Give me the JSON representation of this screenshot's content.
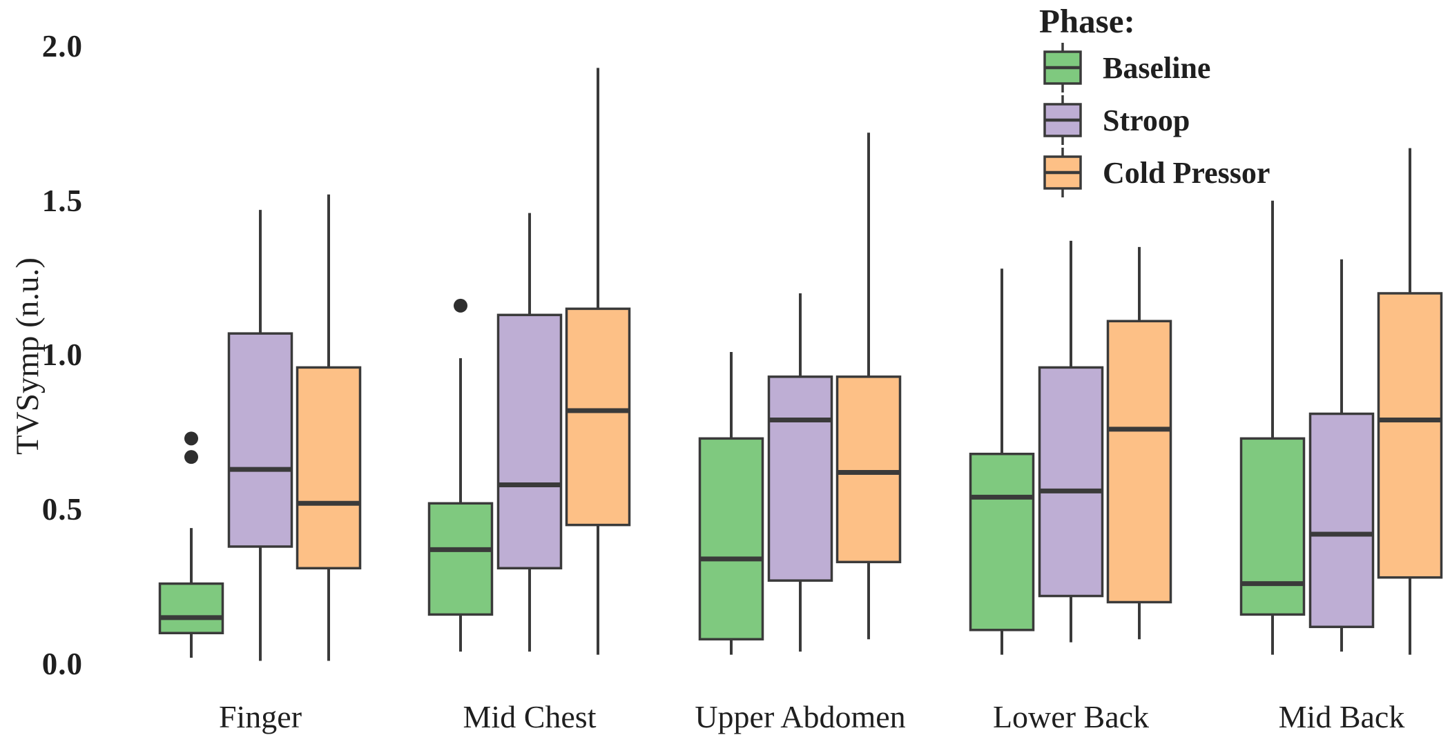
{
  "figure": {
    "background": "#ffffff"
  },
  "colors": {
    "baseline": "#7fc97f",
    "stroop": "#beaed4",
    "cold_pressor": "#fdc086",
    "box_stroke": "#3a3a3a",
    "outlier": "#2e2e2e",
    "text": "#1f1f1f"
  },
  "y_axis": {
    "tick_labels": [
      "2.0",
      "1.5",
      "1.0",
      "0.5",
      "0.0"
    ],
    "tick_values": [
      2.0,
      1.5,
      1.0,
      0.5,
      0.0
    ]
  },
  "legend": {
    "title": "Phase:",
    "position": "top-right",
    "items": [
      {
        "label": "Baseline",
        "color": "#7fc97f"
      },
      {
        "label": "Stroop",
        "color": "#beaed4"
      },
      {
        "label": "Cold Pressor",
        "color": "#fdc086"
      }
    ]
  },
  "chart_data": {
    "type": "boxplot",
    "title": "",
    "xlabel": "",
    "ylabel": "TVSymp (n.u.)",
    "ylim": [
      0.0,
      2.0
    ],
    "grid": false,
    "legend_position": "top-right",
    "categories": [
      "Finger",
      "Mid Chest",
      "Upper Abdomen",
      "Lower Back",
      "Mid Back"
    ],
    "series": [
      {
        "name": "Baseline",
        "color": "#7fc97f",
        "boxes": [
          {
            "low": 0.02,
            "q1": 0.1,
            "median": 0.15,
            "q3": 0.26,
            "high": 0.44,
            "outliers": [
              0.67,
              0.73
            ]
          },
          {
            "low": 0.04,
            "q1": 0.16,
            "median": 0.37,
            "q3": 0.52,
            "high": 0.99,
            "outliers": [
              1.16
            ]
          },
          {
            "low": 0.03,
            "q1": 0.08,
            "median": 0.34,
            "q3": 0.73,
            "high": 1.01,
            "outliers": []
          },
          {
            "low": 0.03,
            "q1": 0.11,
            "median": 0.54,
            "q3": 0.68,
            "high": 1.28,
            "outliers": []
          },
          {
            "low": 0.03,
            "q1": 0.16,
            "median": 0.26,
            "q3": 0.73,
            "high": 1.5,
            "outliers": []
          }
        ]
      },
      {
        "name": "Stroop",
        "color": "#beaed4",
        "boxes": [
          {
            "low": 0.01,
            "q1": 0.38,
            "median": 0.63,
            "q3": 1.07,
            "high": 1.47,
            "outliers": []
          },
          {
            "low": 0.04,
            "q1": 0.31,
            "median": 0.58,
            "q3": 1.13,
            "high": 1.46,
            "outliers": []
          },
          {
            "low": 0.04,
            "q1": 0.27,
            "median": 0.79,
            "q3": 0.93,
            "high": 1.2,
            "outliers": []
          },
          {
            "low": 0.07,
            "q1": 0.22,
            "median": 0.56,
            "q3": 0.96,
            "high": 1.37,
            "outliers": []
          },
          {
            "low": 0.04,
            "q1": 0.12,
            "median": 0.42,
            "q3": 0.81,
            "high": 1.31,
            "outliers": []
          }
        ]
      },
      {
        "name": "Cold Pressor",
        "color": "#fdc086",
        "boxes": [
          {
            "low": 0.01,
            "q1": 0.31,
            "median": 0.52,
            "q3": 0.96,
            "high": 1.52,
            "outliers": []
          },
          {
            "low": 0.03,
            "q1": 0.45,
            "median": 0.82,
            "q3": 1.15,
            "high": 1.93,
            "outliers": []
          },
          {
            "low": 0.08,
            "q1": 0.33,
            "median": 0.62,
            "q3": 0.93,
            "high": 1.72,
            "outliers": []
          },
          {
            "low": 0.08,
            "q1": 0.2,
            "median": 0.76,
            "q3": 1.11,
            "high": 1.35,
            "outliers": []
          },
          {
            "low": 0.03,
            "q1": 0.28,
            "median": 0.79,
            "q3": 1.2,
            "high": 1.67,
            "outliers": []
          }
        ]
      }
    ]
  }
}
